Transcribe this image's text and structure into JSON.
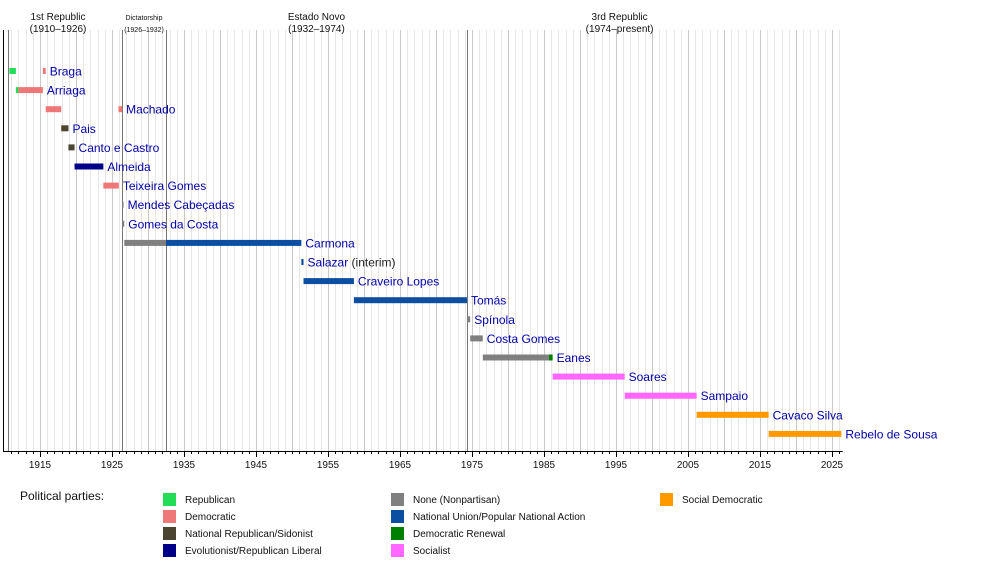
{
  "chart_data": {
    "type": "timeline",
    "title": "",
    "xlabel": "",
    "ylabel": "",
    "xlim": [
      1910,
      2026.5
    ],
    "x_ticks": [
      1915,
      1925,
      1935,
      1945,
      1955,
      1965,
      1975,
      1985,
      1995,
      2005,
      2015,
      2025
    ],
    "minor_tick_step": 1,
    "grid": true,
    "eras": [
      {
        "name": "1st Republic",
        "range_label": "(1910–1926)",
        "start": 1910,
        "end": 1926.4,
        "small": false
      },
      {
        "name": "Dictatorship",
        "range_label": "(1926–1932)",
        "start": 1926.4,
        "end": 1932.5,
        "small": true
      },
      {
        "name": "Estado Novo",
        "range_label": "(1932–1974)",
        "start": 1932.5,
        "end": 1974.3,
        "small": false
      },
      {
        "name": "3rd Republic",
        "range_label": "(1974–present)",
        "start": 1974.3,
        "end": 2026.5,
        "small": false
      }
    ],
    "era_dividers": [
      1910.6,
      1926.4,
      1932.5,
      1974.3
    ],
    "parties": [
      {
        "key": "republican",
        "name": "Republican",
        "color": "#22dd55"
      },
      {
        "key": "democratic",
        "name": "Democratic",
        "color": "#ee7777"
      },
      {
        "key": "sidonist",
        "name": "National Republican/Sidonist",
        "color": "#4a4530"
      },
      {
        "key": "evolutionist",
        "name": "Evolutionist/Republican Liberal",
        "color": "#000088"
      },
      {
        "key": "nonpartisan",
        "name": "None (Nonpartisan)",
        "color": "#808080"
      },
      {
        "key": "national_union",
        "name": "National Union/Popular National Action",
        "color": "#0b4ea2"
      },
      {
        "key": "democratic_renewal",
        "name": "Democratic Renewal",
        "color": "#008000"
      },
      {
        "key": "socialist",
        "name": "Socialist",
        "color": "#ff66ff"
      },
      {
        "key": "social_democratic",
        "name": "Social Democratic",
        "color": "#ff9900"
      }
    ],
    "presidents": [
      {
        "name": "Braga",
        "suffix": "",
        "terms": [
          {
            "start": 1910.75,
            "end": 1911.65,
            "party": "republican"
          },
          {
            "start": 1915.4,
            "end": 1915.8,
            "party": "democratic"
          }
        ]
      },
      {
        "name": "Arriaga",
        "suffix": "",
        "terms": [
          {
            "start": 1911.65,
            "end": 1912.0,
            "party": "republican"
          },
          {
            "start": 1912.0,
            "end": 1915.4,
            "party": "democratic"
          }
        ]
      },
      {
        "name": "Machado",
        "suffix": "",
        "terms": [
          {
            "start": 1915.8,
            "end": 1917.95,
            "party": "democratic"
          },
          {
            "start": 1925.9,
            "end": 1926.4,
            "party": "democratic"
          }
        ]
      },
      {
        "name": "Pais",
        "suffix": "",
        "terms": [
          {
            "start": 1917.95,
            "end": 1918.95,
            "party": "sidonist"
          }
        ]
      },
      {
        "name": "Canto e Castro",
        "suffix": "",
        "terms": [
          {
            "start": 1918.95,
            "end": 1919.8,
            "party": "sidonist"
          }
        ]
      },
      {
        "name": "Almeida",
        "suffix": "",
        "terms": [
          {
            "start": 1919.8,
            "end": 1923.8,
            "party": "evolutionist"
          }
        ]
      },
      {
        "name": "Teixeira Gomes",
        "suffix": "",
        "terms": [
          {
            "start": 1923.8,
            "end": 1925.95,
            "party": "democratic"
          }
        ]
      },
      {
        "name": "Mendes Cabeçadas",
        "suffix": "",
        "terms": [
          {
            "start": 1926.4,
            "end": 1926.45,
            "party": "nonpartisan"
          }
        ]
      },
      {
        "name": "Gomes da Costa",
        "suffix": "",
        "terms": [
          {
            "start": 1926.45,
            "end": 1926.7,
            "party": "nonpartisan"
          }
        ]
      },
      {
        "name": "Carmona",
        "suffix": "",
        "terms": [
          {
            "start": 1926.7,
            "end": 1932.5,
            "party": "nonpartisan"
          },
          {
            "start": 1932.5,
            "end": 1951.3,
            "party": "national_union"
          }
        ]
      },
      {
        "name": "Salazar",
        "suffix": "(interim)",
        "terms": [
          {
            "start": 1951.3,
            "end": 1951.6,
            "party": "national_union"
          }
        ]
      },
      {
        "name": "Craveiro Lopes",
        "suffix": "",
        "terms": [
          {
            "start": 1951.6,
            "end": 1958.6,
            "party": "national_union"
          }
        ]
      },
      {
        "name": "Tomás",
        "suffix": "",
        "terms": [
          {
            "start": 1958.6,
            "end": 1974.3,
            "party": "national_union"
          }
        ]
      },
      {
        "name": "Spínola",
        "suffix": "",
        "terms": [
          {
            "start": 1974.3,
            "end": 1974.75,
            "party": "nonpartisan"
          }
        ]
      },
      {
        "name": "Costa Gomes",
        "suffix": "",
        "terms": [
          {
            "start": 1974.75,
            "end": 1976.5,
            "party": "nonpartisan"
          }
        ]
      },
      {
        "name": "Eanes",
        "suffix": "",
        "terms": [
          {
            "start": 1976.5,
            "end": 1985.7,
            "party": "nonpartisan"
          },
          {
            "start": 1985.7,
            "end": 1986.2,
            "party": "democratic_renewal"
          }
        ]
      },
      {
        "name": "Soares",
        "suffix": "",
        "terms": [
          {
            "start": 1986.2,
            "end": 1996.2,
            "party": "socialist"
          }
        ]
      },
      {
        "name": "Sampaio",
        "suffix": "",
        "terms": [
          {
            "start": 1996.2,
            "end": 2006.2,
            "party": "socialist"
          }
        ]
      },
      {
        "name": "Cavaco Silva",
        "suffix": "",
        "terms": [
          {
            "start": 2006.2,
            "end": 2016.2,
            "party": "social_democratic"
          }
        ]
      },
      {
        "name": "Rebelo de Sousa",
        "suffix": "",
        "terms": [
          {
            "start": 2016.2,
            "end": 2026.3,
            "party": "social_democratic"
          }
        ]
      }
    ],
    "legend": {
      "title": "Political parties:",
      "placement": "bottom",
      "columns": [
        [
          "republican",
          "democratic",
          "sidonist",
          "evolutionist"
        ],
        [
          "nonpartisan",
          "national_union",
          "democratic_renewal",
          "socialist"
        ],
        [
          "social_democratic"
        ]
      ]
    }
  }
}
